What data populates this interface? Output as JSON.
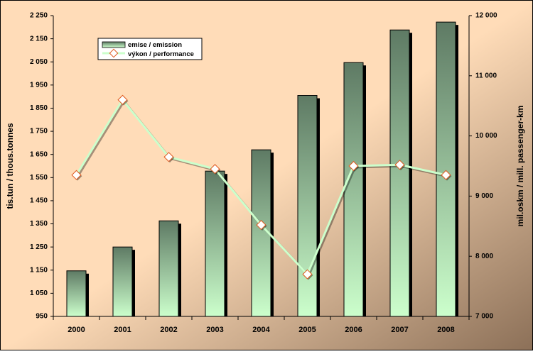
{
  "chart_data": {
    "type": "bar",
    "categories": [
      "2000",
      "2001",
      "2002",
      "2003",
      "2004",
      "2005",
      "2006",
      "2007",
      "2008"
    ],
    "series": [
      {
        "name": "emise / emission",
        "kind": "bar",
        "axis": "left",
        "values": [
          1147,
          1250,
          1363,
          1578,
          1670,
          1905,
          2047,
          2188,
          2222
        ]
      },
      {
        "name": "výkon / performance",
        "kind": "line",
        "axis": "right",
        "values": [
          9350,
          10600,
          9650,
          9450,
          8520,
          7700,
          9500,
          9520,
          9350
        ]
      }
    ],
    "ylabel": "tis.tun / thous.tonnes",
    "y2label": "mil.oskm / mill. passenger-km",
    "ylim": [
      950,
      2250
    ],
    "y2lim": [
      7000,
      12000
    ],
    "yticks": [
      "950",
      "1 050",
      "1 150",
      "1 250",
      "1 350",
      "1 450",
      "1 550",
      "1 650",
      "1 750",
      "1 850",
      "1 950",
      "2 050",
      "2 150",
      "2 250"
    ],
    "y2ticks": [
      "7 000",
      "8 000",
      "9 000",
      "10 000",
      "11 000",
      "12 000"
    ],
    "grid": false,
    "legend_position": "top-left",
    "colors": {
      "bar_top": "#5e7a64",
      "bar_bottom": "#ccffcc",
      "line": "#ccffcc",
      "marker_fill": "#ffffff",
      "marker_stroke": "#e05a1e",
      "background_light": "#ffdcb8",
      "background_dark": "#8c7058"
    }
  }
}
